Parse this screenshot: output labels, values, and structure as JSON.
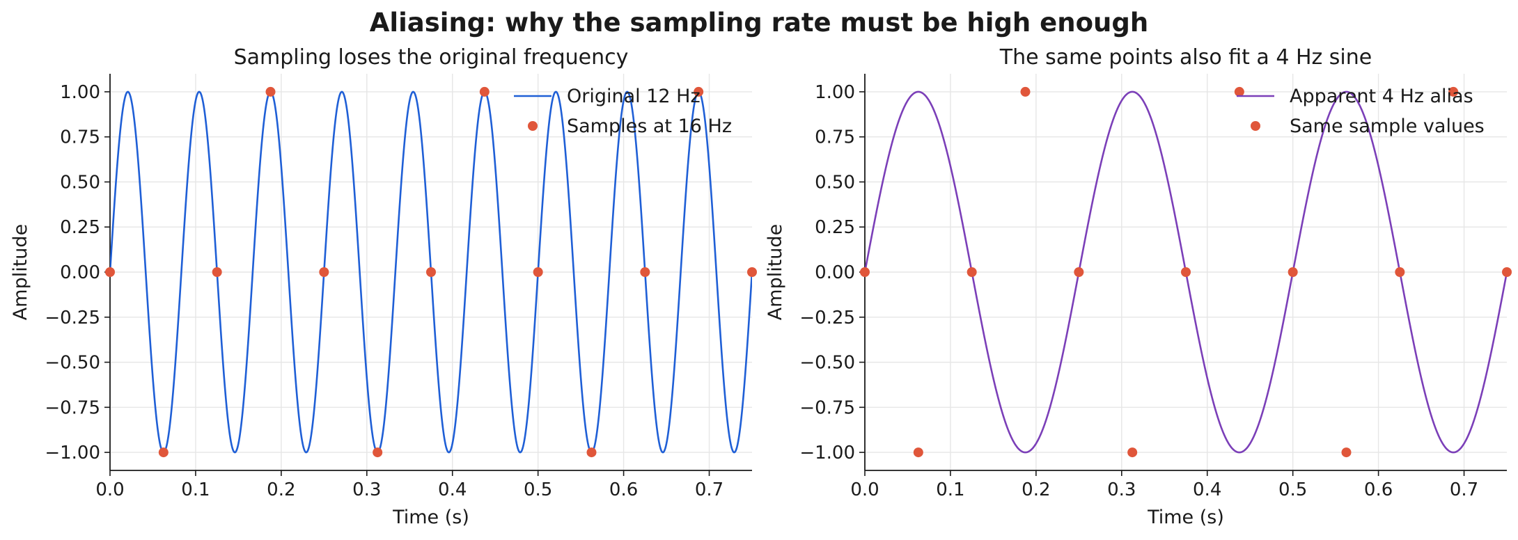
{
  "suptitle": "Aliasing: why the sampling rate must be high enough",
  "colors": {
    "original": "#1f5fd6",
    "alias": "#7b3fb8",
    "samples": "#e0563a",
    "grid": "#e6e6e6",
    "axis": "#1a1a1a"
  },
  "chart_data": [
    {
      "type": "line",
      "title": "Sampling loses the original frequency",
      "xlabel": "Time (s)",
      "ylabel": "Amplitude",
      "xlim": [
        0,
        0.75
      ],
      "ylim": [
        -1.1,
        1.1
      ],
      "xticks": [
        "0.0",
        "0.1",
        "0.2",
        "0.3",
        "0.4",
        "0.5",
        "0.6",
        "0.7"
      ],
      "yticks": [
        "1.00",
        "0.75",
        "0.50",
        "0.25",
        "0.00",
        "−0.25",
        "−0.50",
        "−0.75",
        "−1.00"
      ],
      "grid": true,
      "legend_position": "top-right",
      "series": [
        {
          "name": "Original 12 Hz",
          "kind": "line",
          "function": "sine",
          "frequency_hz": 12,
          "color": "#1f5fd6"
        },
        {
          "name": "Samples at 16 Hz",
          "kind": "points",
          "color": "#e0563a",
          "x": [
            0,
            0.0625,
            0.125,
            0.1875,
            0.25,
            0.3125,
            0.375,
            0.4375,
            0.5,
            0.5625,
            0.625,
            0.6875,
            0.75
          ],
          "y": [
            0,
            -1,
            0,
            1,
            0,
            -1,
            0,
            1,
            0,
            -1,
            0,
            1,
            0
          ]
        }
      ]
    },
    {
      "type": "line",
      "title": "The same points also fit a 4 Hz sine",
      "xlabel": "Time (s)",
      "ylabel": "Amplitude",
      "xlim": [
        0,
        0.75
      ],
      "ylim": [
        -1.1,
        1.1
      ],
      "xticks": [
        "0.0",
        "0.1",
        "0.2",
        "0.3",
        "0.4",
        "0.5",
        "0.6",
        "0.7"
      ],
      "yticks": [
        "1.00",
        "0.75",
        "0.50",
        "0.25",
        "0.00",
        "−0.25",
        "−0.50",
        "−0.75",
        "−1.00"
      ],
      "grid": true,
      "legend_position": "top-right",
      "series": [
        {
          "name": "Apparent 4 Hz alias",
          "kind": "line",
          "function": "sine",
          "frequency_hz": 4,
          "color": "#7b3fb8"
        },
        {
          "name": "Same sample values",
          "kind": "points",
          "color": "#e0563a",
          "x": [
            0,
            0.0625,
            0.125,
            0.1875,
            0.25,
            0.3125,
            0.375,
            0.4375,
            0.5,
            0.5625,
            0.625,
            0.6875,
            0.75
          ],
          "y": [
            0,
            -1,
            0,
            1,
            0,
            -1,
            0,
            1,
            0,
            -1,
            0,
            1,
            0
          ]
        }
      ]
    }
  ]
}
